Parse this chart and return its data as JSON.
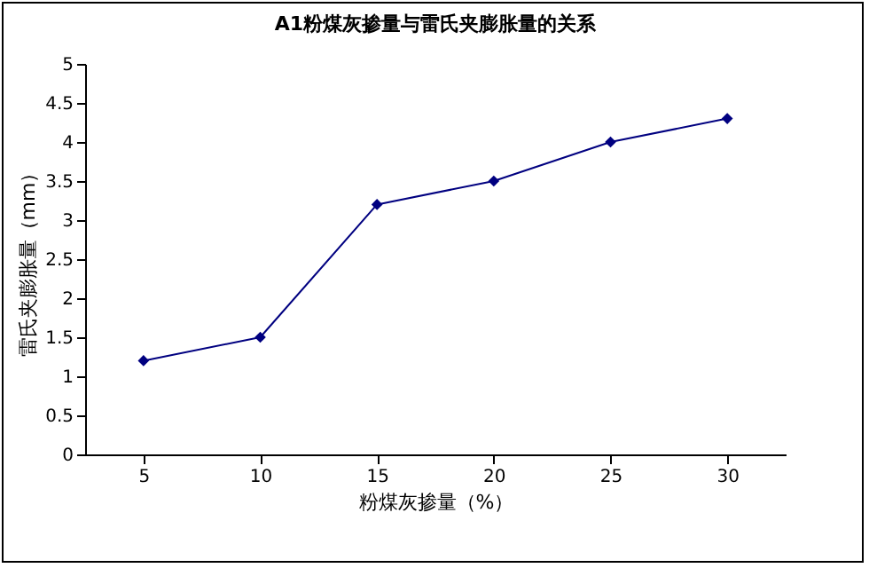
{
  "chart_data": {
    "type": "line",
    "title": "A1粉煤灰掺量与雷氏夹膨胀量的关系",
    "xlabel": "粉煤灰掺量（%）",
    "ylabel": "雷氏夹膨胀量（mm）",
    "categories": [
      "5",
      "10",
      "15",
      "20",
      "25",
      "30"
    ],
    "series": [
      {
        "color": "#000080",
        "values": [
          1.2,
          1.5,
          3.2,
          3.5,
          4.0,
          4.3
        ]
      }
    ],
    "ylim": [
      0,
      5
    ],
    "yticks": [
      0,
      0.5,
      1,
      1.5,
      2,
      2.5,
      3,
      3.5,
      4,
      4.5,
      5
    ],
    "grid": false,
    "legend": false,
    "marker": "diamond"
  }
}
